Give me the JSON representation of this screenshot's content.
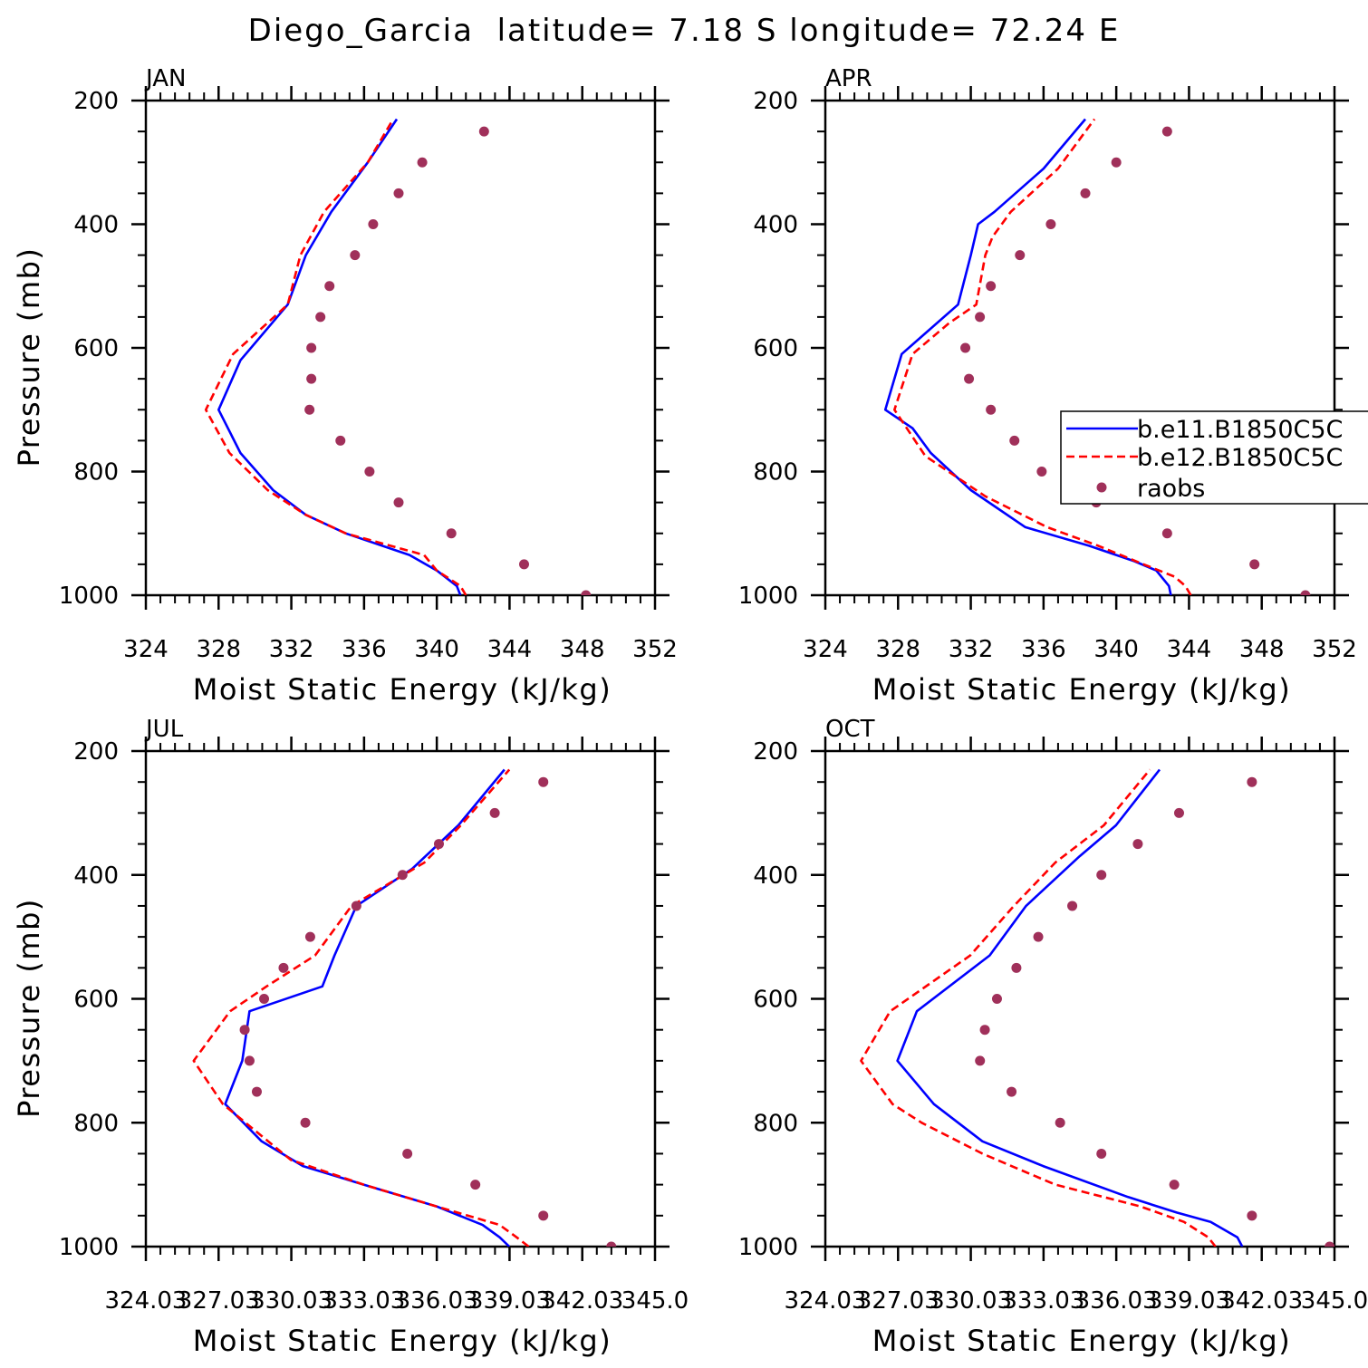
{
  "page": {
    "title": "Diego_Garcia  latitude= 7.18 S longitude= 72.24 E"
  },
  "legend": {
    "entries": [
      {
        "label": "b.e11.B1850C5C",
        "color": "#0000ff",
        "style": "solid"
      },
      {
        "label": "b.e12.B1850C5C",
        "color": "#ff0000",
        "style": "dashed"
      },
      {
        "label": "raobs",
        "color": "#a0305a",
        "style": "marker"
      }
    ],
    "placement": "APR panel, right edge, partially clipped"
  },
  "chart_data": [
    {
      "type": "line",
      "panel_label": "JAN",
      "xlabel": "Moist Static Energy (kJ/kg)",
      "ylabel": "Pressure (mb)",
      "xlim": [
        324,
        352
      ],
      "ylim": [
        1000,
        200
      ],
      "xticks": [
        "324",
        "328",
        "332",
        "336",
        "340",
        "344",
        "348",
        "352"
      ],
      "yticks": [
        "200",
        "400",
        "600",
        "800",
        "1000"
      ],
      "series": [
        {
          "name": "b.e11.B1850C5C",
          "color": "#0000ff",
          "style": "solid",
          "x": [
            341.3,
            341.1,
            340.0,
            338.5,
            335.0,
            332.8,
            331.0,
            329.2,
            328.0,
            329.2,
            331.8,
            332.8,
            334.2,
            336.2,
            337.8
          ],
          "y": [
            1000,
            985,
            960,
            935,
            900,
            870,
            830,
            770,
            700,
            620,
            530,
            450,
            380,
            300,
            230
          ]
        },
        {
          "name": "b.e12.B1850C5C",
          "color": "#ff0000",
          "style": "dashed",
          "x": [
            341.6,
            341.3,
            340.0,
            339.3,
            335.0,
            332.8,
            330.7,
            328.6,
            327.3,
            328.8,
            331.8,
            332.5,
            333.8,
            336.2,
            337.6
          ],
          "y": [
            1000,
            985,
            960,
            935,
            900,
            870,
            830,
            770,
            700,
            610,
            530,
            450,
            380,
            300,
            230
          ]
        },
        {
          "name": "raobs",
          "color": "#a0305a",
          "style": "marker",
          "x": [
            348.2,
            344.8,
            340.8,
            337.9,
            336.3,
            334.7,
            333.0,
            333.1,
            333.1,
            333.6,
            334.1,
            335.5,
            336.5,
            337.9,
            339.2,
            342.6
          ],
          "y": [
            1000,
            950,
            900,
            850,
            800,
            750,
            700,
            650,
            600,
            550,
            500,
            450,
            400,
            350,
            300,
            250
          ]
        }
      ]
    },
    {
      "type": "line",
      "panel_label": "APR",
      "xlabel": "Moist Static Energy (kJ/kg)",
      "ylabel": "",
      "xlim": [
        324,
        352
      ],
      "ylim": [
        1000,
        200
      ],
      "xticks": [
        "324",
        "328",
        "332",
        "336",
        "340",
        "344",
        "348",
        "352"
      ],
      "yticks": [
        "200",
        "400",
        "600",
        "800",
        "1000"
      ],
      "series": [
        {
          "name": "b.e11.B1850C5C",
          "color": "#0000ff",
          "style": "solid",
          "x": [
            343.0,
            342.9,
            342.2,
            341.0,
            338.5,
            335.0,
            332.0,
            329.8,
            328.8,
            327.3,
            328.2,
            331.3,
            332.0,
            332.4,
            333.3,
            336.0,
            338.3
          ],
          "y": [
            1000,
            985,
            960,
            945,
            920,
            890,
            830,
            770,
            730,
            700,
            610,
            530,
            450,
            400,
            380,
            310,
            230
          ]
        },
        {
          "name": "b.e12.B1850C5C",
          "color": "#ff0000",
          "style": "dashed",
          "x": [
            344.1,
            343.8,
            343.2,
            341.5,
            339.0,
            336.2,
            332.8,
            329.5,
            327.8,
            328.8,
            330.8,
            332.3,
            332.8,
            333.2,
            334.2,
            336.8,
            338.8
          ],
          "y": [
            1000,
            985,
            970,
            950,
            920,
            890,
            840,
            775,
            700,
            610,
            560,
            530,
            450,
            420,
            380,
            310,
            230
          ]
        },
        {
          "name": "raobs",
          "color": "#a0305a",
          "style": "marker",
          "x": [
            350.4,
            347.6,
            342.8,
            338.9,
            335.9,
            334.4,
            333.1,
            331.9,
            331.7,
            332.5,
            333.1,
            334.7,
            336.4,
            338.3,
            340.0,
            342.8
          ],
          "y": [
            1000,
            950,
            900,
            850,
            800,
            750,
            700,
            650,
            600,
            550,
            500,
            450,
            400,
            350,
            300,
            250
          ]
        }
      ]
    },
    {
      "type": "line",
      "panel_label": "JUL",
      "xlabel": "Moist Static Energy (kJ/kg)",
      "ylabel": "Pressure (mb)",
      "xlim": [
        324.03,
        345.0
      ],
      "ylim": [
        1000,
        200
      ],
      "xticks": [
        "324.03",
        "327.03",
        "330.03",
        "333.03",
        "336.03",
        "339.03",
        "342.03",
        "345.0"
      ],
      "yticks": [
        "200",
        "400",
        "600",
        "800",
        "1000"
      ],
      "series": [
        {
          "name": "b.e11.B1850C5C",
          "color": "#0000ff",
          "style": "solid",
          "x": [
            339.0,
            338.6,
            337.9,
            336.0,
            333.0,
            330.5,
            328.8,
            327.3,
            328.0,
            328.3,
            331.3,
            331.8,
            332.7,
            335.0,
            336.9,
            338.8
          ],
          "y": [
            1000,
            985,
            965,
            935,
            900,
            870,
            830,
            770,
            700,
            620,
            580,
            530,
            450,
            390,
            320,
            230
          ]
        },
        {
          "name": "b.e12.B1850C5C",
          "color": "#ff0000",
          "style": "dashed",
          "x": [
            339.8,
            339.3,
            338.6,
            336.0,
            333.0,
            330.0,
            327.2,
            326.0,
            327.5,
            329.0,
            331.0,
            332.5,
            335.5,
            337.0,
            339.0
          ],
          "y": [
            1000,
            985,
            965,
            935,
            900,
            860,
            770,
            700,
            620,
            580,
            530,
            450,
            380,
            320,
            230
          ]
        },
        {
          "name": "raobs",
          "color": "#a0305a",
          "style": "marker",
          "x": [
            343.2,
            340.4,
            337.6,
            334.8,
            330.6,
            328.6,
            328.3,
            328.1,
            328.9,
            329.7,
            330.8,
            332.7,
            334.6,
            336.1,
            338.4,
            340.4
          ],
          "y": [
            1000,
            950,
            900,
            850,
            800,
            750,
            700,
            650,
            600,
            550,
            500,
            450,
            400,
            350,
            300,
            250
          ]
        }
      ]
    },
    {
      "type": "line",
      "panel_label": "OCT",
      "xlabel": "Moist Static Energy (kJ/kg)",
      "ylabel": "",
      "xlim": [
        324.03,
        345.0
      ],
      "ylim": [
        1000,
        200
      ],
      "xticks": [
        "324.03",
        "327.03",
        "330.03",
        "333.03",
        "336.03",
        "339.03",
        "342.03",
        "345.0"
      ],
      "yticks": [
        "200",
        "400",
        "600",
        "800",
        "1000"
      ],
      "series": [
        {
          "name": "b.e11.B1850C5C",
          "color": "#0000ff",
          "style": "solid",
          "x": [
            341.2,
            341.0,
            339.9,
            338.5,
            336.5,
            333.0,
            330.5,
            328.5,
            327.0,
            327.8,
            330.8,
            332.3,
            334.5,
            336.0,
            337.8
          ],
          "y": [
            1000,
            985,
            960,
            945,
            920,
            870,
            830,
            770,
            700,
            620,
            530,
            450,
            370,
            320,
            230
          ]
        },
        {
          "name": "b.e12.B1850C5C",
          "color": "#ff0000",
          "style": "dashed",
          "x": [
            340.1,
            339.8,
            338.8,
            337.0,
            333.5,
            330.5,
            328.0,
            326.8,
            325.5,
            326.7,
            330.0,
            331.8,
            333.5,
            335.5,
            337.4
          ],
          "y": [
            1000,
            985,
            960,
            935,
            900,
            850,
            800,
            770,
            700,
            620,
            530,
            450,
            380,
            320,
            230
          ]
        },
        {
          "name": "raobs",
          "color": "#a0305a",
          "style": "marker",
          "x": [
            344.8,
            341.6,
            338.4,
            335.4,
            333.7,
            331.7,
            330.4,
            330.6,
            331.1,
            331.9,
            332.8,
            334.2,
            335.4,
            336.9,
            338.6,
            341.6
          ],
          "y": [
            1000,
            950,
            900,
            850,
            800,
            750,
            700,
            650,
            600,
            550,
            500,
            450,
            400,
            350,
            300,
            250
          ]
        }
      ]
    }
  ]
}
